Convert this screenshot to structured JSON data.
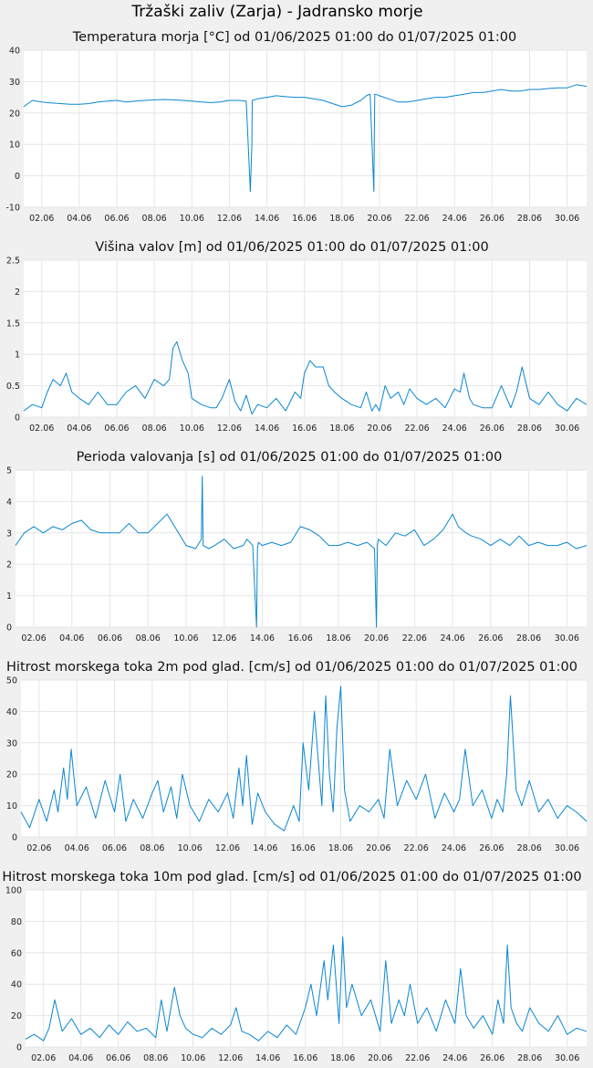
{
  "page_title": "Tržaški zaliv (Zarja) - Jadransko morje",
  "colors": {
    "series": "#0a86d1",
    "grid": "#e6e6e6",
    "plot_background": "#ffffff",
    "page_background": "#f0f0f0"
  },
  "chart_data": [
    {
      "type": "line",
      "title": "Temperatura morja [°C] od 01/06/2025 01:00 do 01/07/2025 01:00",
      "xlabel": "",
      "ylabel": "",
      "ylim": [
        -10,
        40
      ],
      "yticks": [
        "-10",
        "0",
        "10",
        "20",
        "30",
        "40"
      ],
      "xticks": [
        "02.06",
        "04.06",
        "06.06",
        "08.06",
        "10.06",
        "12.06",
        "14.06",
        "16.06",
        "18.06",
        "20.06",
        "22.06",
        "24.06",
        "26.06",
        "28.06",
        "30.06"
      ],
      "xlim_days": [
        1.04,
        31.04
      ],
      "grid": true,
      "series": [
        {
          "x": [
            1.04,
            1.5,
            2,
            2.5,
            3,
            3.5,
            4,
            4.5,
            5,
            5.5,
            6,
            6.5,
            7,
            7.5,
            8,
            8.5,
            9,
            9.5,
            10,
            10.5,
            11,
            11.5,
            12,
            12.5,
            12.9,
            13.12,
            13.2,
            13.22,
            13.5,
            14,
            14.5,
            15,
            15.5,
            16,
            16.5,
            17,
            17.5,
            18,
            18.5,
            19,
            19.3,
            19.5,
            19.7,
            19.72,
            19.75,
            19.8,
            20,
            20.5,
            21,
            21.5,
            22,
            22.5,
            23,
            23.5,
            24,
            24.5,
            25,
            25.5,
            26,
            26.5,
            27,
            27.5,
            28,
            28.5,
            29,
            29.5,
            30,
            30.5,
            31.04
          ],
          "y": [
            22,
            24,
            23.5,
            23.2,
            23,
            22.8,
            22.8,
            23,
            23.5,
            23.8,
            24,
            23.5,
            23.8,
            24,
            24.2,
            24.3,
            24.2,
            24,
            23.8,
            23.5,
            23.3,
            23.5,
            24,
            24,
            23.8,
            -5,
            10,
            24,
            24.5,
            25,
            25.5,
            25.2,
            25,
            25,
            24.5,
            24,
            23,
            22,
            22.5,
            24,
            25.5,
            26,
            -5,
            10,
            26,
            26,
            25.5,
            24.5,
            23.5,
            23.5,
            24,
            24.5,
            25,
            25,
            25.5,
            26,
            26.5,
            26.5,
            27,
            27.5,
            27,
            27,
            27.5,
            27.5,
            27.8,
            28,
            28,
            29,
            28.5
          ]
        }
      ]
    },
    {
      "type": "line",
      "title": "Višina valov [m] od 01/06/2025 01:00 do 01/07/2025 01:00",
      "xlabel": "",
      "ylabel": "",
      "ylim": [
        0,
        2.5
      ],
      "yticks": [
        "0",
        "0.5",
        "1",
        "1.5",
        "2",
        "2.5"
      ],
      "xticks": [
        "02.06",
        "04.06",
        "06.06",
        "08.06",
        "10.06",
        "12.06",
        "14.06",
        "16.06",
        "18.06",
        "20.06",
        "22.06",
        "24.06",
        "26.06",
        "28.06",
        "30.06"
      ],
      "xlim_days": [
        1.04,
        31.04
      ],
      "grid": true,
      "series": [
        {
          "x": [
            1.04,
            1.5,
            2,
            2.3,
            2.6,
            3,
            3.3,
            3.6,
            4,
            4.5,
            5,
            5.5,
            6,
            6.5,
            7,
            7.5,
            8,
            8.5,
            8.8,
            9,
            9.2,
            9.5,
            9.8,
            10,
            10.5,
            11,
            11.3,
            11.6,
            12,
            12.3,
            12.6,
            12.9,
            13.2,
            13.5,
            14,
            14.5,
            15,
            15.5,
            15.8,
            16,
            16.3,
            16.6,
            17,
            17.3,
            17.6,
            18,
            18.5,
            19,
            19.3,
            19.6,
            19.8,
            20,
            20.3,
            20.6,
            21,
            21.3,
            21.6,
            22,
            22.5,
            23,
            23.5,
            24,
            24.3,
            24.5,
            24.8,
            25,
            25.5,
            26,
            26.5,
            27,
            27.3,
            27.6,
            28,
            28.5,
            29,
            29.5,
            30,
            30.5,
            31.04
          ],
          "y": [
            0.1,
            0.2,
            0.15,
            0.4,
            0.6,
            0.5,
            0.7,
            0.4,
            0.3,
            0.2,
            0.4,
            0.2,
            0.2,
            0.4,
            0.5,
            0.3,
            0.6,
            0.5,
            0.6,
            1.1,
            1.2,
            0.9,
            0.7,
            0.3,
            0.2,
            0.15,
            0.15,
            0.3,
            0.6,
            0.25,
            0.1,
            0.35,
            0.05,
            0.2,
            0.15,
            0.3,
            0.1,
            0.4,
            0.3,
            0.7,
            0.9,
            0.8,
            0.8,
            0.5,
            0.4,
            0.3,
            0.2,
            0.15,
            0.4,
            0.1,
            0.2,
            0.1,
            0.5,
            0.3,
            0.4,
            0.2,
            0.45,
            0.3,
            0.2,
            0.3,
            0.15,
            0.45,
            0.4,
            0.7,
            0.3,
            0.2,
            0.15,
            0.15,
            0.5,
            0.15,
            0.4,
            0.8,
            0.3,
            0.2,
            0.4,
            0.2,
            0.1,
            0.3,
            0.2
          ]
        }
      ]
    },
    {
      "type": "line",
      "title": "Perioda valovanja [s] od 01/06/2025 01:00 do 01/07/2025 01:00",
      "xlabel": "",
      "ylabel": "",
      "ylim": [
        0,
        5
      ],
      "yticks": [
        "0",
        "1",
        "2",
        "3",
        "4",
        "5"
      ],
      "xticks": [
        "02.06",
        "04.06",
        "06.06",
        "08.06",
        "10.06",
        "12.06",
        "14.06",
        "16.06",
        "18.06",
        "20.06",
        "22.06",
        "24.06",
        "26.06",
        "28.06",
        "30.06"
      ],
      "xlim_days": [
        1.04,
        31.04
      ],
      "grid": true,
      "series": [
        {
          "x": [
            1.04,
            1.5,
            2,
            2.5,
            3,
            3.5,
            4,
            4.5,
            5,
            5.5,
            6,
            6.5,
            7,
            7.5,
            8,
            8.5,
            9,
            9.3,
            9.6,
            10,
            10.5,
            10.8,
            10.85,
            10.9,
            11.2,
            11.5,
            12,
            12.5,
            13,
            13.2,
            13.5,
            13.7,
            13.75,
            13.8,
            14,
            14.5,
            15,
            15.5,
            16,
            16.5,
            17,
            17.5,
            18,
            18.5,
            19,
            19.5,
            19.9,
            20,
            20.05,
            20.1,
            20.5,
            21,
            21.5,
            22,
            22.5,
            23,
            23.5,
            24,
            24.3,
            24.7,
            25,
            25.5,
            26,
            26.5,
            27,
            27.5,
            28,
            28.5,
            29,
            29.5,
            30,
            30.5,
            31.04
          ],
          "y": [
            2.6,
            3,
            3.2,
            3,
            3.2,
            3.1,
            3.3,
            3.4,
            3.1,
            3,
            3,
            3,
            3.3,
            3,
            3,
            3.3,
            3.6,
            3.3,
            3,
            2.6,
            2.5,
            2.8,
            4.8,
            2.6,
            2.5,
            2.6,
            2.8,
            2.5,
            2.6,
            2.8,
            2.6,
            0,
            2.5,
            2.7,
            2.6,
            2.7,
            2.6,
            2.7,
            3.2,
            3.1,
            2.9,
            2.6,
            2.6,
            2.7,
            2.6,
            2.7,
            2.5,
            0,
            2.6,
            2.8,
            2.6,
            3,
            2.9,
            3.1,
            2.6,
            2.8,
            3.1,
            3.6,
            3.2,
            3,
            2.9,
            2.8,
            2.6,
            2.8,
            2.6,
            2.9,
            2.6,
            2.7,
            2.6,
            2.6,
            2.7,
            2.5,
            2.6
          ]
        }
      ]
    },
    {
      "type": "line",
      "title": "Hitrost morskega toka 2m pod glad. [cm/s] od 01/06/2025 01:00 do 01/07/2025 01:00",
      "xlabel": "",
      "ylabel": "",
      "ylim": [
        0,
        50
      ],
      "yticks": [
        "0",
        "10",
        "20",
        "30",
        "40",
        "50"
      ],
      "xticks": [
        "02.06",
        "04.06",
        "06.06",
        "08.06",
        "10.06",
        "12.06",
        "14.06",
        "16.06",
        "18.06",
        "20.06",
        "22.06",
        "24.06",
        "26.06",
        "28.06",
        "30.06"
      ],
      "xlim_days": [
        1.04,
        31.04
      ],
      "grid": true,
      "series": [
        {
          "x": [
            1.04,
            1.5,
            2,
            2.4,
            2.8,
            3,
            3.3,
            3.5,
            3.7,
            4,
            4.5,
            5,
            5.5,
            6,
            6.3,
            6.6,
            7,
            7.5,
            8,
            8.3,
            8.6,
            9,
            9.3,
            9.6,
            10,
            10.5,
            11,
            11.5,
            12,
            12.3,
            12.6,
            12.8,
            13,
            13.3,
            13.6,
            14,
            14.5,
            15,
            15.5,
            15.8,
            16,
            16.3,
            16.6,
            17,
            17.2,
            17.4,
            17.6,
            17.8,
            18,
            18.2,
            18.5,
            19,
            19.5,
            20,
            20.3,
            20.6,
            21,
            21.5,
            22,
            22.5,
            23,
            23.5,
            24,
            24.3,
            24.6,
            25,
            25.5,
            26,
            26.3,
            26.6,
            26.8,
            27,
            27.3,
            27.6,
            28,
            28.5,
            29,
            29.5,
            30,
            30.5,
            31.04
          ],
          "y": [
            8,
            3,
            12,
            5,
            15,
            8,
            22,
            12,
            28,
            10,
            16,
            6,
            18,
            8,
            20,
            5,
            12,
            6,
            14,
            18,
            8,
            16,
            6,
            20,
            10,
            5,
            12,
            8,
            14,
            6,
            22,
            10,
            26,
            4,
            14,
            8,
            4,
            2,
            10,
            5,
            30,
            15,
            40,
            10,
            45,
            20,
            8,
            35,
            48,
            15,
            5,
            10,
            8,
            12,
            6,
            28,
            10,
            18,
            12,
            20,
            6,
            14,
            8,
            12,
            28,
            10,
            15,
            6,
            12,
            8,
            20,
            45,
            15,
            10,
            18,
            8,
            12,
            6,
            10,
            8,
            5
          ]
        }
      ]
    },
    {
      "type": "line",
      "title": "Hitrost morskega toka 10m pod glad. [cm/s] od 01/06/2025 01:00 do 01/07/2025 01:00",
      "xlabel": "",
      "ylabel": "",
      "ylim": [
        0,
        100
      ],
      "yticks": [
        "0",
        "20",
        "40",
        "60",
        "80",
        "100"
      ],
      "xticks": [
        "02.06",
        "04.06",
        "06.06",
        "08.06",
        "10.06",
        "12.06",
        "14.06",
        "16.06",
        "18.06",
        "20.06",
        "22.06",
        "24.06",
        "26.06",
        "28.06",
        "30.06"
      ],
      "xlim_days": [
        1.04,
        31.04
      ],
      "grid": true,
      "series": [
        {
          "x": [
            1.04,
            1.5,
            2,
            2.3,
            2.6,
            3,
            3.5,
            4,
            4.5,
            5,
            5.5,
            6,
            6.5,
            7,
            7.5,
            8,
            8.3,
            8.6,
            9,
            9.3,
            9.6,
            10,
            10.5,
            11,
            11.5,
            12,
            12.3,
            12.6,
            13,
            13.5,
            14,
            14.5,
            15,
            15.5,
            16,
            16.3,
            16.6,
            17,
            17.2,
            17.5,
            17.8,
            18,
            18.2,
            18.5,
            19,
            19.5,
            20,
            20.3,
            20.6,
            21,
            21.3,
            21.6,
            22,
            22.5,
            23,
            23.5,
            24,
            24.3,
            24.6,
            25,
            25.5,
            26,
            26.3,
            26.6,
            26.8,
            27,
            27.3,
            27.6,
            28,
            28.5,
            29,
            29.5,
            30,
            30.5,
            31.04
          ],
          "y": [
            5,
            8,
            4,
            12,
            30,
            10,
            18,
            8,
            12,
            6,
            14,
            8,
            16,
            10,
            12,
            6,
            30,
            10,
            38,
            20,
            12,
            8,
            6,
            12,
            8,
            14,
            25,
            10,
            8,
            4,
            10,
            6,
            14,
            8,
            25,
            40,
            20,
            55,
            30,
            65,
            15,
            70,
            25,
            40,
            20,
            30,
            10,
            55,
            15,
            30,
            20,
            40,
            15,
            25,
            10,
            30,
            15,
            50,
            20,
            12,
            20,
            8,
            30,
            15,
            65,
            25,
            15,
            10,
            25,
            15,
            10,
            20,
            8,
            12,
            10
          ]
        }
      ]
    }
  ]
}
